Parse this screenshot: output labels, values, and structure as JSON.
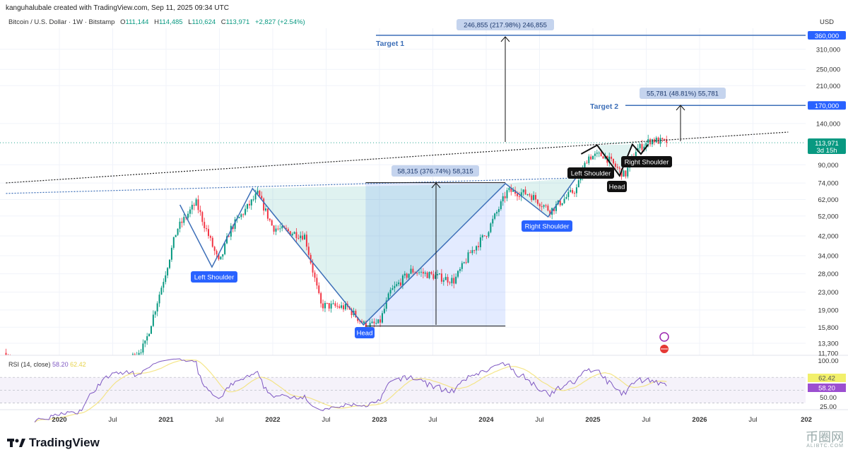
{
  "header": {
    "credit": "kanguhalubale created with TradingView.com, Sep 11, 2025 09:34 UTC"
  },
  "legend": {
    "symbol": "Bitcoin / U.S. Dollar · 1W · Bitstamp",
    "o_label": "O",
    "o": "111,144",
    "h_label": "H",
    "h": "114,485",
    "l_label": "L",
    "l": "110,624",
    "c_label": "C",
    "c": "113,971",
    "change": "+2,827 (+2.54%)"
  },
  "rsi": {
    "label": "RSI (14, close)",
    "value": "58.20",
    "ma": "62.42",
    "ticks": [
      "100.00",
      "50.00",
      "25.00"
    ],
    "badge_rsi": "58.20",
    "badge_ma": "62.42"
  },
  "price_axis": {
    "currency": "USD",
    "ticks": [
      "310,000",
      "250,000",
      "210,000",
      "140,000",
      "90,000",
      "74,000",
      "62,000",
      "52,000",
      "42,000",
      "34,000",
      "28,000",
      "23,000",
      "19,000",
      "15,800",
      "13,300",
      "11,700"
    ],
    "tick_values": [
      310000,
      250000,
      210000,
      140000,
      90000,
      74000,
      62000,
      52000,
      42000,
      34000,
      28000,
      23000,
      19000,
      15800,
      13300,
      11700
    ],
    "target1_badge": "360,000",
    "target2_badge": "170,000",
    "last_price": "113,971",
    "countdown": "3d 15h"
  },
  "time_axis": {
    "labels": [
      "2020",
      "Jul",
      "2021",
      "Jul",
      "2022",
      "Jul",
      "2023",
      "Jul",
      "2024",
      "Jul",
      "2025",
      "Jul",
      "2026",
      "Jul",
      "202"
    ],
    "times": [
      2020,
      2020.5,
      2021,
      2021.5,
      2022,
      2022.5,
      2023,
      2023.5,
      2024,
      2024.5,
      2025,
      2025.5,
      2026,
      2026.5,
      2027
    ]
  },
  "annotations": {
    "target1": "Target 1",
    "target2": "Target 2",
    "measure1": "246,855 (217.98%) 246,855",
    "measure2": "55,781 (48.81%) 55,781",
    "measure3": "58,315 (376.74%) 58,315",
    "left_shoulder": "Left Shoulder",
    "head": "Head",
    "right_shoulder": "Right Shoulder",
    "left_shoulder_2": "Left Shoulder",
    "head_2": "Head",
    "right_shoulder_2": "Right Shoulder"
  },
  "brand": {
    "logo": "TradingView",
    "watermark": "币圈网",
    "watermark_sub": "ALIBTC.COM"
  },
  "colors": {
    "up": "#089981",
    "down": "#f23645",
    "accent": "#2962ff",
    "pattern": "#3d6fb8",
    "rsi": "#7e57c2",
    "rsi_ma": "#f2e06b",
    "last": "#089981"
  },
  "chart_data": {
    "type": "candlestick",
    "title": "Bitcoin / U.S. Dollar · 1W · Bitstamp",
    "scale": "log",
    "ylim": [
      11700,
      360000
    ],
    "xlim": [
      2019.5,
      2027.0
    ],
    "price_keypoints": [
      [
        2019.5,
        12000
      ],
      [
        2019.9,
        7000
      ],
      [
        2020.2,
        5000
      ],
      [
        2020.5,
        9500
      ],
      [
        2020.8,
        13000
      ],
      [
        2021.0,
        29000
      ],
      [
        2021.1,
        45000
      ],
      [
        2021.28,
        60000
      ],
      [
        2021.5,
        31000
      ],
      [
        2021.6,
        45000
      ],
      [
        2021.86,
        66000
      ],
      [
        2022.0,
        46000
      ],
      [
        2022.3,
        42000
      ],
      [
        2022.45,
        20000
      ],
      [
        2022.7,
        19500
      ],
      [
        2022.87,
        16000
      ],
      [
        2023.0,
        16500
      ],
      [
        2023.1,
        23000
      ],
      [
        2023.3,
        29000
      ],
      [
        2023.7,
        26000
      ],
      [
        2023.85,
        35000
      ],
      [
        2024.0,
        43000
      ],
      [
        2024.2,
        68000
      ],
      [
        2024.4,
        66000
      ],
      [
        2024.6,
        55000
      ],
      [
        2024.85,
        70000
      ],
      [
        2024.95,
        98000
      ],
      [
        2025.1,
        100000
      ],
      [
        2025.3,
        80000
      ],
      [
        2025.4,
        105000
      ],
      [
        2025.55,
        118000
      ],
      [
        2025.69,
        113971
      ]
    ],
    "pattern_main": [
      [
        2021.13,
        58600
      ],
      [
        2021.43,
        30100
      ],
      [
        2021.81,
        69800
      ],
      [
        2022.85,
        16200
      ],
      [
        2024.18,
        73600
      ],
      [
        2024.58,
        51500
      ],
      [
        2024.84,
        78100
      ]
    ],
    "neckline": [
      [
        2019.5,
        66200
      ],
      [
        2024.84,
        78100
      ]
    ],
    "trendline": [
      [
        2019.5,
        74100
      ],
      [
        2026.83,
        127700
      ]
    ],
    "pattern_small": [
      [
        2024.89,
        101000
      ],
      [
        2025.04,
        111000
      ],
      [
        2025.25,
        80000
      ],
      [
        2025.37,
        112000
      ],
      [
        2025.45,
        101000
      ],
      [
        2025.52,
        112000
      ]
    ],
    "target1_price": 360000,
    "target2_price": 170000,
    "measure_box": {
      "t0": 2022.87,
      "t1": 2024.18,
      "p0": 16000,
      "p1": 74300
    }
  }
}
